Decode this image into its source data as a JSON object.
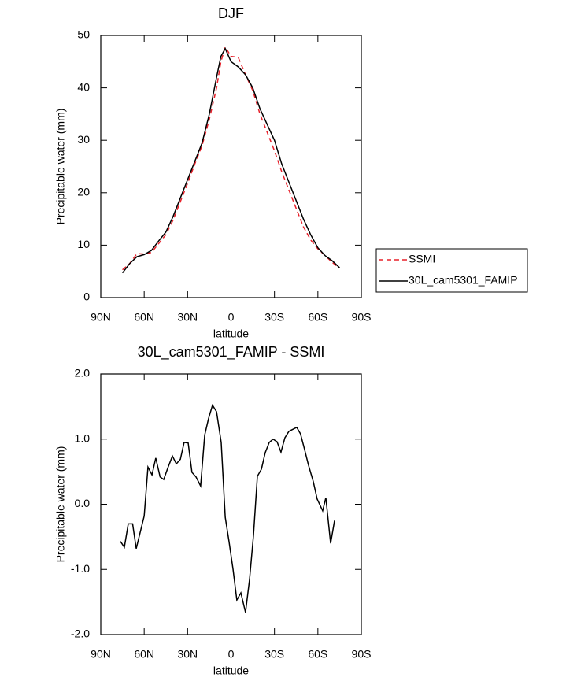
{
  "chart_data": [
    {
      "type": "line",
      "title": "DJF",
      "xlabel": "latitude",
      "ylabel": "Precipitable water (mm)",
      "x": [
        75,
        70,
        65,
        60,
        55,
        50,
        45,
        40,
        35,
        30,
        25,
        20,
        15,
        10,
        7,
        4,
        0,
        -5,
        -10,
        -15,
        -20,
        -25,
        -30,
        -35,
        -40,
        -45,
        -50,
        -55,
        -60,
        -65,
        -70,
        -75
      ],
      "series": [
        {
          "name": "SSMI",
          "color": "#e8202a",
          "dash": "dashed",
          "values": [
            5.3,
            6.5,
            8.4,
            8.3,
            8.6,
            10.3,
            12,
            14.8,
            18.3,
            21.8,
            25.5,
            29,
            34,
            40,
            45,
            47.8,
            46,
            45.8,
            42.5,
            39.5,
            35,
            31.5,
            28,
            24,
            20.5,
            17,
            13.5,
            11,
            9.3,
            8,
            6.7,
            5.6
          ]
        },
        {
          "name": "30L_cam5301_FAMIP",
          "color": "#000000",
          "dash": "solid",
          "values": [
            4.7,
            6.5,
            7.8,
            8.2,
            9,
            10.8,
            12.5,
            15.5,
            19,
            22.5,
            26,
            29.5,
            35,
            42,
            46,
            47.5,
            45,
            44,
            42.5,
            40,
            36,
            33,
            30,
            25.5,
            22,
            18.5,
            15,
            12,
            9.5,
            8,
            7,
            5.7
          ]
        }
      ],
      "xlim": [
        90,
        -90
      ],
      "xticks": [
        {
          "value": 90,
          "label": "90N"
        },
        {
          "value": 60,
          "label": "60N"
        },
        {
          "value": 30,
          "label": "30N"
        },
        0,
        {
          "value": -30,
          "label": "30S"
        },
        {
          "value": -60,
          "label": "60S"
        },
        {
          "value": -90,
          "label": "90S"
        }
      ],
      "ylim": [
        0,
        50
      ],
      "yticks": [
        0,
        10,
        20,
        30,
        40,
        50
      ],
      "legend": "right"
    },
    {
      "type": "line",
      "title": "30L_cam5301_FAMIP - SSMI",
      "xlabel": "latitude",
      "ylabel": "Precipitable water (mm)",
      "x": [
        76.4,
        73.7,
        71,
        68,
        65.5,
        60,
        57.4,
        54.6,
        52,
        49,
        46.5,
        43.8,
        40.5,
        37.8,
        35,
        32.4,
        29.6,
        27,
        24.2,
        21,
        18.2,
        15.5,
        12.8,
        10,
        6.8,
        4,
        1.4,
        -1.4,
        -4,
        -6.8,
        -10,
        -12.8,
        -15.5,
        -18.2,
        -21,
        -23.6,
        -26.4,
        -29,
        -31.8,
        -34.5,
        -37.2,
        -40,
        -42.7,
        -45.4,
        -48,
        -50.8,
        -53.5,
        -56.8,
        -59.5,
        -63.3,
        -65.5,
        -68.8,
        -71.5
      ],
      "values": [
        -0.57,
        -0.66,
        -0.3,
        -0.3,
        -0.68,
        -0.18,
        0.57,
        0.45,
        0.71,
        0.42,
        0.38,
        0.55,
        0.74,
        0.62,
        0.69,
        0.95,
        0.94,
        0.49,
        0.42,
        0.28,
        1.06,
        1.32,
        1.52,
        1.42,
        0.95,
        -0.2,
        -0.57,
        -1,
        -1.47,
        -1.36,
        -1.66,
        -1.15,
        -0.48,
        0.43,
        0.54,
        0.79,
        0.95,
        1,
        0.96,
        0.8,
        1.02,
        1.12,
        1.15,
        1.18,
        1.08,
        0.84,
        0.6,
        0.35,
        0.08,
        -0.1,
        0.1,
        -0.6,
        -0.25
      ],
      "color": "#000000",
      "xlim": [
        90,
        -90
      ],
      "xticks": [
        {
          "value": 90,
          "label": "90N"
        },
        {
          "value": 60,
          "label": "60N"
        },
        {
          "value": 30,
          "label": "30N"
        },
        0,
        {
          "value": -30,
          "label": "30S"
        },
        {
          "value": -60,
          "label": "60S"
        },
        {
          "value": -90,
          "label": "90S"
        }
      ],
      "ylim": [
        -2,
        2
      ],
      "yticks": [
        {
          "value": -2,
          "label": "-2.0"
        },
        {
          "value": -1,
          "label": "-1.0"
        },
        {
          "value": 0,
          "label": "0.0"
        },
        {
          "value": 1,
          "label": "1.0"
        },
        {
          "value": 2,
          "label": "2.0"
        }
      ]
    }
  ]
}
